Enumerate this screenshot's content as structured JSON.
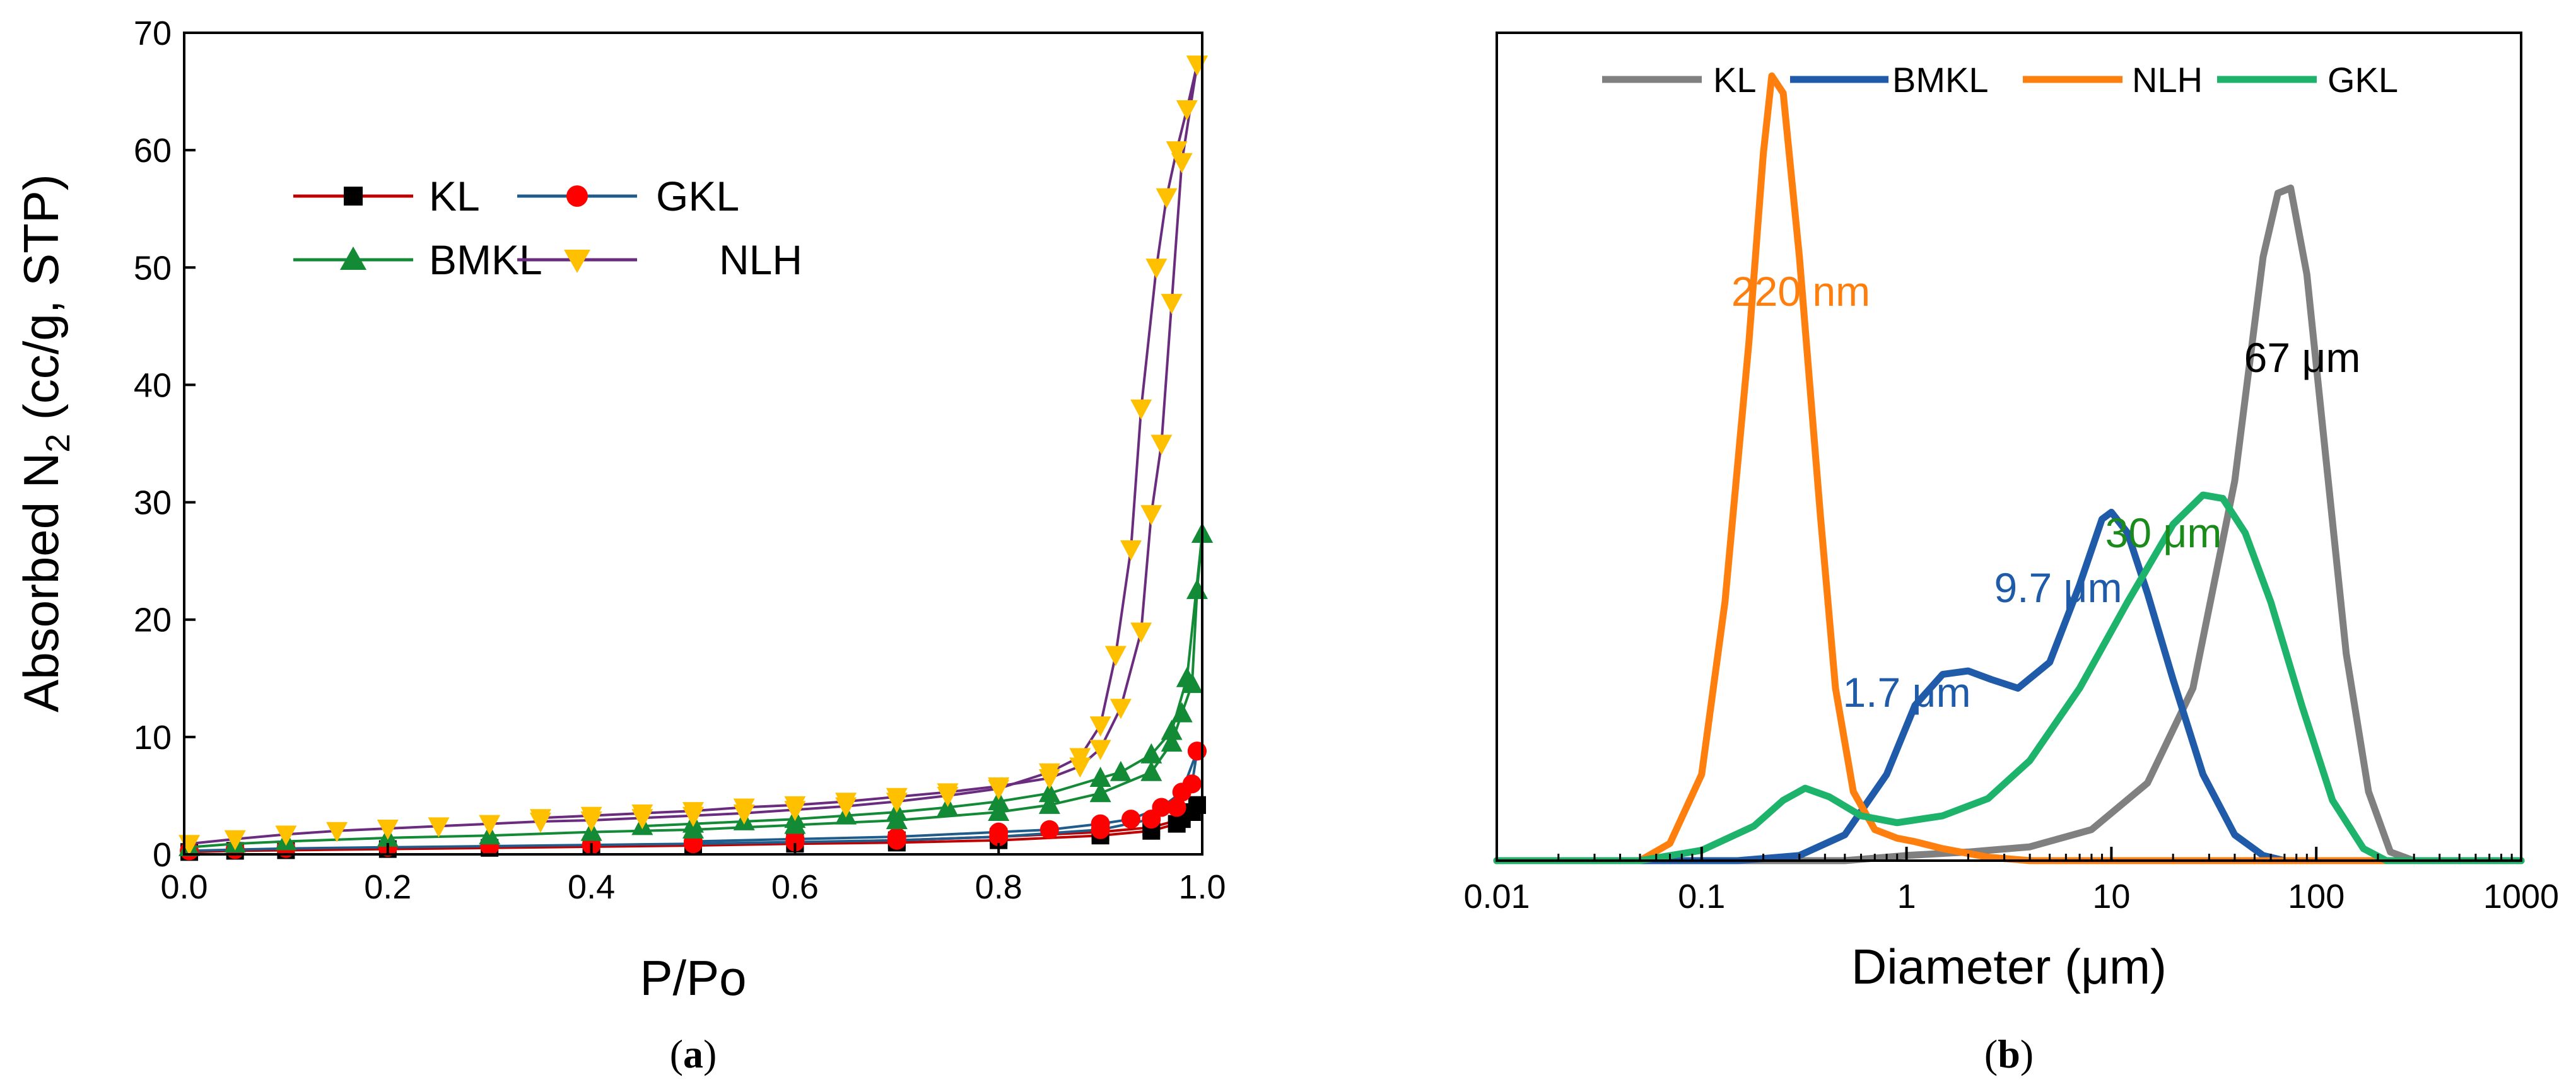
{
  "chart_data": [
    {
      "type": "scatter",
      "panel_label": "a",
      "xlabel": "P/Po",
      "ylabel_parts": {
        "pre": "Absorbed N",
        "sub": "2",
        "post": " (cc/g, STP)"
      },
      "xlim": [
        0.0,
        1.0
      ],
      "ylim": [
        0,
        70
      ],
      "x_ticks": [
        "0.0",
        "0.2",
        "0.4",
        "0.6",
        "0.8",
        "1.0"
      ],
      "y_ticks": [
        "0",
        "10",
        "20",
        "30",
        "40",
        "50",
        "60",
        "70"
      ],
      "legend": [
        "KL",
        "GKL",
        "BMKL",
        "NLH"
      ],
      "series": [
        {
          "name": "KL",
          "color": "#c00000",
          "marker_color": "#000000",
          "marker": "square",
          "adsorption": [
            [
              0.005,
              0.2
            ],
            [
              0.05,
              0.3
            ],
            [
              0.1,
              0.35
            ],
            [
              0.2,
              0.45
            ],
            [
              0.3,
              0.55
            ],
            [
              0.4,
              0.65
            ],
            [
              0.5,
              0.75
            ],
            [
              0.6,
              0.9
            ],
            [
              0.7,
              1.0
            ],
            [
              0.8,
              1.2
            ],
            [
              0.9,
              1.6
            ],
            [
              0.95,
              2.0
            ],
            [
              0.975,
              2.6
            ],
            [
              0.99,
              3.6
            ],
            [
              0.995,
              4.2
            ]
          ],
          "desorption": [
            [
              0.995,
              4.2
            ],
            [
              0.98,
              3.0
            ],
            [
              0.95,
              2.3
            ],
            [
              0.9,
              1.9
            ],
            [
              0.8,
              1.5
            ],
            [
              0.7,
              1.2
            ],
            [
              0.6,
              1.0
            ],
            [
              0.5,
              0.9
            ]
          ]
        },
        {
          "name": "GKL",
          "color": "#1f5c8b",
          "marker_color": "#ff0000",
          "marker": "circle",
          "adsorption": [
            [
              0.005,
              0.3
            ],
            [
              0.05,
              0.4
            ],
            [
              0.1,
              0.5
            ],
            [
              0.2,
              0.6
            ],
            [
              0.3,
              0.7
            ],
            [
              0.4,
              0.8
            ],
            [
              0.5,
              0.9
            ],
            [
              0.6,
              1.05
            ],
            [
              0.7,
              1.2
            ],
            [
              0.8,
              1.5
            ],
            [
              0.9,
              2.1
            ],
            [
              0.95,
              3.0
            ],
            [
              0.975,
              4.0
            ],
            [
              0.99,
              6.0
            ],
            [
              0.995,
              8.8
            ]
          ],
          "desorption": [
            [
              0.995,
              8.8
            ],
            [
              0.98,
              5.3
            ],
            [
              0.96,
              4.0
            ],
            [
              0.93,
              3.0
            ],
            [
              0.9,
              2.6
            ],
            [
              0.85,
              2.1
            ],
            [
              0.8,
              1.9
            ],
            [
              0.7,
              1.5
            ],
            [
              0.6,
              1.3
            ],
            [
              0.5,
              1.1
            ]
          ]
        },
        {
          "name": "BMKL",
          "color": "#138a36",
          "marker_color": "#138a36",
          "marker": "triangle-up",
          "adsorption": [
            [
              0.005,
              0.6
            ],
            [
              0.05,
              0.9
            ],
            [
              0.1,
              1.1
            ],
            [
              0.2,
              1.4
            ],
            [
              0.3,
              1.6
            ],
            [
              0.4,
              1.9
            ],
            [
              0.5,
              2.1
            ],
            [
              0.6,
              2.5
            ],
            [
              0.7,
              2.9
            ],
            [
              0.8,
              3.6
            ],
            [
              0.85,
              4.2
            ],
            [
              0.9,
              5.2
            ],
            [
              0.95,
              7.0
            ],
            [
              0.97,
              9.5
            ],
            [
              0.98,
              12.0
            ],
            [
              0.99,
              14.5
            ],
            [
              0.995,
              22.5
            ],
            [
              1.0,
              27.3
            ]
          ],
          "desorption": [
            [
              1.0,
              27.3
            ],
            [
              0.985,
              15.0
            ],
            [
              0.97,
              10.5
            ],
            [
              0.95,
              8.5
            ],
            [
              0.92,
              7.0
            ],
            [
              0.9,
              6.5
            ],
            [
              0.85,
              5.2
            ],
            [
              0.8,
              4.5
            ],
            [
              0.75,
              4.0
            ],
            [
              0.7,
              3.6
            ],
            [
              0.65,
              3.3
            ],
            [
              0.6,
              3.0
            ],
            [
              0.55,
              2.8
            ],
            [
              0.5,
              2.6
            ],
            [
              0.45,
              2.4
            ]
          ]
        },
        {
          "name": "NLH",
          "color": "#6a2c7e",
          "marker_color": "#ffc000",
          "marker": "triangle-down",
          "adsorption": [
            [
              0.005,
              0.9
            ],
            [
              0.05,
              1.3
            ],
            [
              0.1,
              1.7
            ],
            [
              0.15,
              2.0
            ],
            [
              0.2,
              2.2
            ],
            [
              0.25,
              2.4
            ],
            [
              0.3,
              2.6
            ],
            [
              0.35,
              2.8
            ],
            [
              0.4,
              2.9
            ],
            [
              0.45,
              3.1
            ],
            [
              0.5,
              3.3
            ],
            [
              0.55,
              3.5
            ],
            [
              0.6,
              3.8
            ],
            [
              0.65,
              4.1
            ],
            [
              0.7,
              4.5
            ],
            [
              0.75,
              5.0
            ],
            [
              0.8,
              5.6
            ],
            [
              0.85,
              7.0
            ],
            [
              0.88,
              8.3
            ],
            [
              0.9,
              11.0
            ],
            [
              0.915,
              17.0
            ],
            [
              0.93,
              26.0
            ],
            [
              0.94,
              38.0
            ],
            [
              0.955,
              50.0
            ],
            [
              0.965,
              56.0
            ],
            [
              0.975,
              60.0
            ],
            [
              0.985,
              63.5
            ],
            [
              0.995,
              67.3
            ]
          ],
          "desorption": [
            [
              0.995,
              67.3
            ],
            [
              0.98,
              59.0
            ],
            [
              0.97,
              47.0
            ],
            [
              0.96,
              35.0
            ],
            [
              0.95,
              29.0
            ],
            [
              0.94,
              19.0
            ],
            [
              0.92,
              12.5
            ],
            [
              0.9,
              9.0
            ],
            [
              0.88,
              7.5
            ],
            [
              0.85,
              6.5
            ],
            [
              0.8,
              5.8
            ],
            [
              0.75,
              5.3
            ],
            [
              0.7,
              4.9
            ],
            [
              0.65,
              4.5
            ],
            [
              0.6,
              4.2
            ],
            [
              0.55,
              4.0
            ],
            [
              0.5,
              3.7
            ],
            [
              0.45,
              3.5
            ],
            [
              0.4,
              3.3
            ],
            [
              0.35,
              3.1
            ]
          ]
        }
      ]
    },
    {
      "type": "line",
      "panel_label": "b",
      "xscale": "log",
      "xlabel": "Diameter (μm)",
      "ylabel": "",
      "xlim": [
        0.01,
        1000
      ],
      "ylim": [
        0,
        48
      ],
      "x_ticks": [
        "0.01",
        "0.1",
        "1",
        "10",
        "100",
        "1000"
      ],
      "legend": [
        "KL",
        "BMKL",
        "NLH",
        "GKL"
      ],
      "series": [
        {
          "name": "KL",
          "color": "#808080",
          "points": [
            [
              0.01,
              0
            ],
            [
              0.5,
              0
            ],
            [
              1,
              0.3
            ],
            [
              2,
              0.5
            ],
            [
              4,
              0.8
            ],
            [
              8,
              1.8
            ],
            [
              15,
              4.5
            ],
            [
              25,
              10
            ],
            [
              40,
              22
            ],
            [
              55,
              35
            ],
            [
              65,
              38.7
            ],
            [
              75,
              39
            ],
            [
              90,
              34
            ],
            [
              110,
              24
            ],
            [
              140,
              12
            ],
            [
              180,
              4
            ],
            [
              230,
              0.5
            ],
            [
              300,
              0
            ],
            [
              1000,
              0
            ]
          ]
        },
        {
          "name": "BMKL",
          "color": "#1f5ba8",
          "points": [
            [
              0.01,
              0
            ],
            [
              0.15,
              0
            ],
            [
              0.3,
              0.3
            ],
            [
              0.5,
              1.5
            ],
            [
              0.8,
              5
            ],
            [
              1.1,
              9
            ],
            [
              1.5,
              10.8
            ],
            [
              2,
              11
            ],
            [
              2.6,
              10.5
            ],
            [
              3.5,
              10
            ],
            [
              5,
              11.5
            ],
            [
              7,
              16
            ],
            [
              9,
              19.8
            ],
            [
              10,
              20.2
            ],
            [
              12,
              19
            ],
            [
              15,
              15.5
            ],
            [
              20,
              10.5
            ],
            [
              28,
              5
            ],
            [
              40,
              1.5
            ],
            [
              55,
              0.3
            ],
            [
              70,
              0
            ],
            [
              1000,
              0
            ]
          ]
        },
        {
          "name": "NLH",
          "color": "#ff7f0e",
          "points": [
            [
              0.01,
              0
            ],
            [
              0.05,
              0
            ],
            [
              0.07,
              1
            ],
            [
              0.1,
              5
            ],
            [
              0.13,
              15
            ],
            [
              0.17,
              30
            ],
            [
              0.2,
              41
            ],
            [
              0.22,
              45.5
            ],
            [
              0.25,
              44.5
            ],
            [
              0.3,
              35
            ],
            [
              0.38,
              20
            ],
            [
              0.45,
              10
            ],
            [
              0.55,
              4
            ],
            [
              0.7,
              1.8
            ],
            [
              0.9,
              1.3
            ],
            [
              1.1,
              1.1
            ],
            [
              1.5,
              0.7
            ],
            [
              2.5,
              0.2
            ],
            [
              4,
              0
            ],
            [
              1000,
              0
            ]
          ]
        },
        {
          "name": "GKL",
          "color": "#1db36b",
          "points": [
            [
              0.01,
              0
            ],
            [
              0.05,
              0
            ],
            [
              0.1,
              0.6
            ],
            [
              0.18,
              2
            ],
            [
              0.25,
              3.5
            ],
            [
              0.32,
              4.2
            ],
            [
              0.42,
              3.7
            ],
            [
              0.6,
              2.6
            ],
            [
              0.9,
              2.2
            ],
            [
              1.5,
              2.6
            ],
            [
              2.5,
              3.6
            ],
            [
              4,
              5.8
            ],
            [
              7,
              10
            ],
            [
              12,
              15
            ],
            [
              20,
              19.5
            ],
            [
              28,
              21.2
            ],
            [
              35,
              21
            ],
            [
              45,
              19
            ],
            [
              60,
              15
            ],
            [
              85,
              9
            ],
            [
              120,
              3.5
            ],
            [
              170,
              0.7
            ],
            [
              220,
              0
            ],
            [
              1000,
              0
            ]
          ]
        }
      ],
      "annotations": [
        {
          "text": "220 nm",
          "color": "#ff7f0e"
        },
        {
          "text": "67 μm",
          "color": "#000000"
        },
        {
          "text": "30 μm",
          "color": "#1a8a1a"
        },
        {
          "text": "9.7 μm",
          "color": "#1f5ba8"
        },
        {
          "text": "1.7 μm",
          "color": "#1f5ba8"
        }
      ]
    }
  ]
}
